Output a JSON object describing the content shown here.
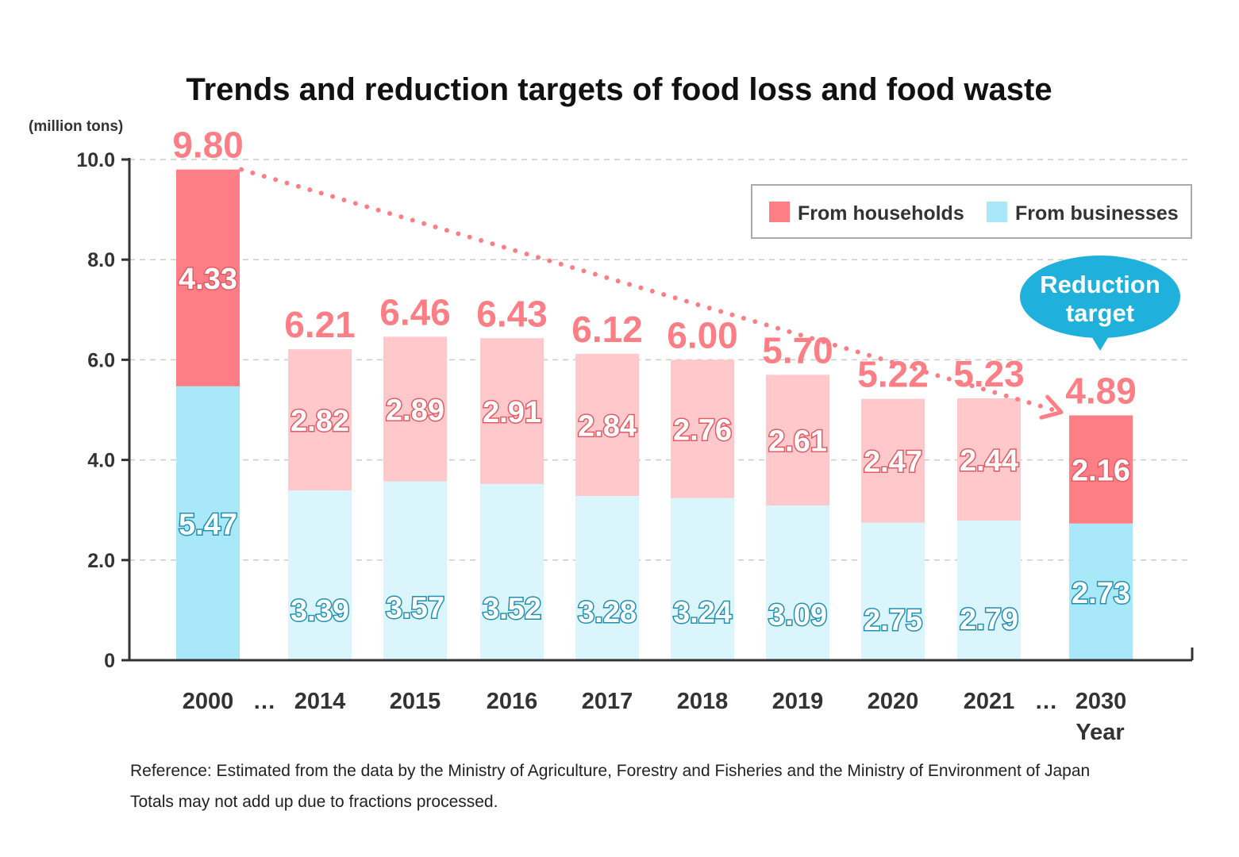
{
  "chart_data": {
    "type": "bar",
    "stacked": true,
    "title": "Trends and reduction targets of food loss and food waste",
    "ylabel": "(million tons)",
    "xlabel": "Year",
    "ylim": [
      0,
      10
    ],
    "yticks": [
      "0",
      "2.0",
      "4.0",
      "6.0",
      "8.0",
      "10.0"
    ],
    "ytick_values": [
      0,
      2,
      4,
      6,
      8,
      10
    ],
    "categories": [
      "2000",
      "2014",
      "2015",
      "2016",
      "2017",
      "2018",
      "2019",
      "2020",
      "2021",
      "2030"
    ],
    "ellipsis": "…",
    "total_labels": [
      "9.80",
      "6.21",
      "6.46",
      "6.43",
      "6.12",
      "6.00",
      "5.70",
      "5.22",
      "5.23",
      "4.89"
    ],
    "totals": [
      9.8,
      6.21,
      6.46,
      6.43,
      6.12,
      6.0,
      5.7,
      5.22,
      5.23,
      4.89
    ],
    "series": [
      {
        "name": "From businesses",
        "values": [
          5.47,
          3.39,
          3.57,
          3.52,
          3.28,
          3.24,
          3.09,
          2.75,
          2.79,
          2.73
        ],
        "labels": [
          "5.47",
          "3.39",
          "3.57",
          "3.52",
          "3.28",
          "3.24",
          "3.09",
          "2.75",
          "2.79",
          "2.73"
        ]
      },
      {
        "name": "From households",
        "values": [
          4.33,
          2.82,
          2.89,
          2.91,
          2.84,
          2.76,
          2.61,
          2.47,
          2.44,
          2.16
        ],
        "labels": [
          "4.33",
          "2.82",
          "2.89",
          "2.91",
          "2.84",
          "2.76",
          "2.61",
          "2.47",
          "2.44",
          "2.16"
        ]
      }
    ],
    "highlighted_categories": [
      "2000",
      "2030"
    ],
    "legend": [
      "From households",
      "From businesses"
    ],
    "legend_position": "top-right",
    "annotation": "Reduction target",
    "grid": true,
    "notes": [
      "Reference: Estimated from the data by the Ministry of Agriculture, Forestry and Fisheries and the Ministry of Environment of Japan",
      "Totals may not add up due to fractions processed."
    ]
  },
  "colors": {
    "households_strong": "#fd7f85",
    "households_light": "#ffc8ca",
    "businesses_strong": "#a8e8f8",
    "businesses_light": "#dbf5fc",
    "businesses_text": "#1f8fb2",
    "households_outline": "#e05b64",
    "total_text": "#fd7f85",
    "bubble": "#1fb1dc",
    "axis": "#333333",
    "grid": "#cccccc"
  }
}
